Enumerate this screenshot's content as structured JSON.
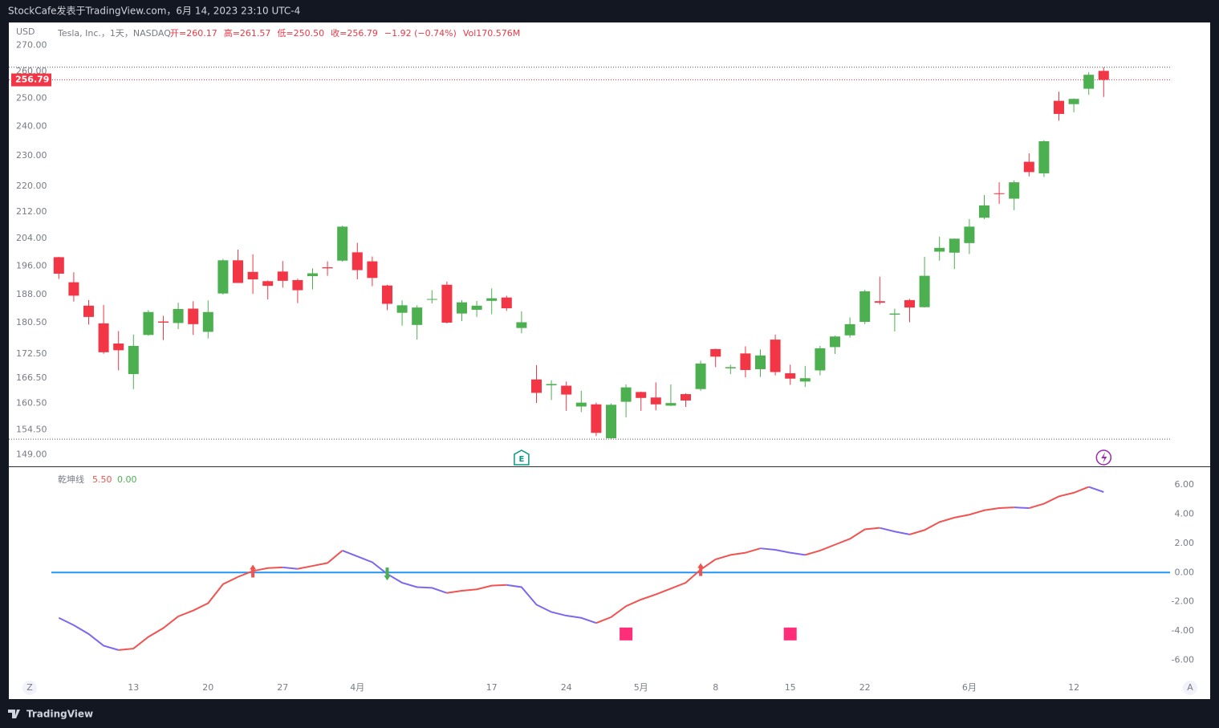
{
  "header": "StockCafe发表于TradingView.com，6月 14, 2023 23:10 UTC-4",
  "footer": "TradingView",
  "buttons": [
    "Z",
    "A"
  ],
  "chart_data": [
    {
      "type": "candlestick",
      "currency": "USD",
      "symbol": "Tesla, Inc.，1天，NASDAQ",
      "legend": [
        "开=260.17",
        "高=261.57",
        "低=250.50",
        "收=256.79",
        "−1.92 (−0.74%)"
      ],
      "volume": "Vol170.576M",
      "log_scale": true,
      "up_color": "#4caf50",
      "down_color": "#f23645",
      "ylim": [
        146.5,
        273
      ],
      "yticks": [
        {
          "value": 270,
          "label": "270.00"
        },
        {
          "value": 260,
          "label": "260.00"
        },
        {
          "value": 250,
          "label": "250.00"
        },
        {
          "value": 240,
          "label": "240.00"
        },
        {
          "value": 230,
          "label": "230.00"
        },
        {
          "value": 220,
          "label": "220.00"
        },
        {
          "value": 212,
          "label": "212.00"
        },
        {
          "value": 204,
          "label": "204.00"
        },
        {
          "value": 196,
          "label": "196.00"
        },
        {
          "value": 188,
          "label": "188.00"
        },
        {
          "value": 180.5,
          "label": "180.50"
        },
        {
          "value": 172.5,
          "label": "172.50"
        },
        {
          "value": 166.5,
          "label": "166.50"
        },
        {
          "value": 160.5,
          "label": "160.50"
        },
        {
          "value": 154.5,
          "label": "154.50"
        },
        {
          "value": 149,
          "label": "149.00"
        }
      ],
      "categories": [
        null,
        null,
        null,
        null,
        null,
        "13",
        null,
        null,
        null,
        null,
        "20",
        null,
        null,
        null,
        null,
        "27",
        null,
        null,
        null,
        null,
        "4月",
        null,
        null,
        null,
        null,
        null,
        null,
        null,
        null,
        "17",
        null,
        null,
        null,
        null,
        "24",
        null,
        null,
        null,
        null,
        "5月",
        null,
        null,
        null,
        null,
        "8",
        null,
        null,
        null,
        null,
        "15",
        null,
        null,
        null,
        null,
        "22",
        null,
        null,
        null,
        null,
        null,
        null,
        "6月",
        null,
        null,
        null,
        null,
        null,
        null,
        "12",
        null,
        null
      ],
      "open": [
        198.5,
        191.4,
        185.0,
        180.3,
        175.1,
        167.5,
        177.3,
        180.8,
        180.4,
        184.2,
        178.1,
        188.3,
        197.6,
        194.3,
        191.7,
        194.4,
        192.0,
        193.1,
        195.6,
        197.5,
        199.9,
        197.3,
        190.5,
        183.1,
        179.9,
        186.7,
        190.7,
        182.9,
        183.9,
        186.3,
        187.2,
        179.1,
        166.2,
        164.8,
        164.7,
        159.8,
        160.3,
        152.6,
        160.9,
        163.2,
        161.9,
        160.0,
        162.7,
        163.9,
        173.7,
        168.9,
        172.6,
        168.7,
        176.1,
        167.7,
        165.7,
        168.4,
        174.2,
        177.2,
        180.7,
        186.2,
        182.6,
        186.5,
        184.6,
        200.1,
        199.8,
        202.6,
        210.2,
        217.8,
        216.1,
        228.0,
        224.2,
        249.1,
        247.9,
        253.5,
        260.17
      ],
      "high": [
        198.6,
        194.2,
        186.5,
        185.2,
        178.3,
        177.4,
        183.8,
        182.3,
        185.8,
        186.2,
        186.4,
        198.0,
        200.7,
        199.3,
        191.9,
        197.4,
        192.4,
        195.3,
        197.3,
        207.8,
        202.7,
        198.7,
        190.7,
        186.4,
        185.1,
        189.2,
        191.6,
        186.5,
        186.3,
        189.7,
        187.7,
        183.5,
        169.7,
        166.0,
        165.7,
        163.5,
        160.7,
        160.5,
        165.0,
        163.3,
        165.5,
        165.0,
        162.9,
        170.8,
        173.8,
        169.8,
        174.4,
        173.6,
        177.4,
        169.8,
        169.5,
        174.5,
        177.1,
        181.9,
        189.3,
        192.96,
        184.2,
        186.8,
        198.6,
        204.5,
        203.95,
        209.8,
        217.25,
        221.3,
        221.9,
        230.8,
        235.2,
        252.4,
        250.0,
        259.7,
        261.57
      ],
      "low": [
        192.3,
        186.1,
        180.0,
        172.5,
        168.4,
        163.9,
        177.1,
        176.0,
        178.8,
        177.3,
        176.4,
        188.0,
        191.2,
        188.2,
        186.7,
        189.9,
        185.7,
        189.4,
        193.2,
        197.2,
        192.2,
        190.3,
        183.8,
        179.7,
        176.1,
        185.6,
        180.3,
        180.9,
        182.0,
        182.7,
        183.6,
        177.7,
        160.6,
        161.3,
        158.8,
        158.5,
        153.1,
        152.4,
        157.3,
        158.8,
        158.9,
        159.9,
        159.7,
        163.5,
        169.2,
        167.5,
        166.7,
        166.8,
        167.2,
        164.9,
        164.4,
        167.2,
        172.5,
        176.6,
        180.1,
        185.3,
        178.2,
        180.6,
        184.5,
        197.5,
        195.1,
        199.4,
        209.75,
        214.5,
        212.5,
        223.2,
        223.0,
        242.0,
        245.0,
        251.3,
        250.5
      ],
      "close": [
        193.8,
        187.7,
        182.0,
        172.9,
        173.4,
        174.5,
        183.3,
        180.5,
        184.1,
        180.1,
        183.3,
        197.6,
        191.2,
        192.2,
        190.4,
        191.8,
        189.2,
        193.9,
        195.3,
        207.5,
        194.8,
        192.6,
        185.5,
        185.1,
        184.5,
        186.8,
        180.5,
        185.9,
        185.0,
        187.0,
        184.3,
        180.6,
        163.0,
        165.1,
        162.6,
        160.7,
        153.8,
        160.2,
        164.3,
        161.8,
        160.3,
        160.6,
        161.2,
        170.1,
        171.8,
        169.2,
        168.5,
        172.1,
        168.0,
        166.4,
        166.5,
        173.9,
        176.9,
        180.1,
        188.9,
        185.8,
        182.9,
        184.5,
        193.2,
        201.2,
        203.9,
        207.5,
        214.0,
        217.6,
        221.3,
        224.6,
        234.9,
        244.4,
        249.8,
        258.7,
        256.79
      ],
      "events": [
        {
          "index": 31,
          "label": "E"
        },
        {
          "index": 70
        }
      ]
    },
    {
      "type": "line",
      "legend": {
        "name": "乾坤线",
        "values": [
          "5.50",
          "0.00"
        ]
      },
      "up_color": "#f05350",
      "down_color": "#7b68ee",
      "reference_line": 0,
      "reference_color": "#2196f3",
      "ylim": [
        -7.5,
        7.2
      ],
      "yticks": [
        {
          "value": 6,
          "label": "6.00"
        },
        {
          "value": 4,
          "label": "4.00"
        },
        {
          "value": 2,
          "label": "2.00"
        },
        {
          "value": 0,
          "label": "0.00"
        },
        {
          "value": -2,
          "label": "-2.00"
        },
        {
          "value": -4,
          "label": "-4.00"
        },
        {
          "value": -6,
          "label": "-6.00"
        }
      ],
      "values": [
        -3.1,
        -3.6,
        -4.2,
        -5.0,
        -5.3,
        -5.2,
        -4.4,
        -3.8,
        -3.0,
        -2.6,
        -2.1,
        -0.8,
        -0.3,
        0.1,
        0.3,
        0.35,
        0.25,
        0.45,
        0.65,
        1.5,
        1.1,
        0.7,
        -0.1,
        -0.7,
        -1.0,
        -1.05,
        -1.4,
        -1.25,
        -1.15,
        -0.9,
        -0.85,
        -1.0,
        -2.2,
        -2.7,
        -2.95,
        -3.1,
        -3.45,
        -3.05,
        -2.3,
        -1.85,
        -1.5,
        -1.1,
        -0.7,
        0.2,
        0.9,
        1.2,
        1.35,
        1.65,
        1.55,
        1.35,
        1.2,
        1.5,
        1.9,
        2.3,
        2.95,
        3.05,
        2.8,
        2.6,
        2.9,
        3.45,
        3.75,
        3.95,
        4.25,
        4.4,
        4.45,
        4.4,
        4.7,
        5.2,
        5.45,
        5.85,
        5.5
      ],
      "up_arrows": [
        13,
        43
      ],
      "down_arrows": [
        22
      ],
      "square_color": "#ff2d7a",
      "squares": {
        "index": [
          38,
          49
        ],
        "value": -4.2
      }
    }
  ]
}
